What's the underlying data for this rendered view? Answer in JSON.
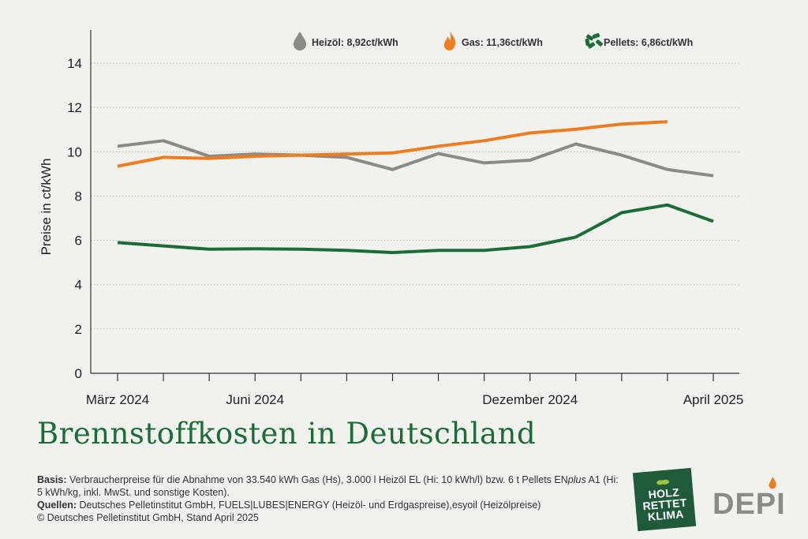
{
  "chart_data": {
    "type": "line",
    "title": "Brennstoffkosten in Deutschland",
    "ylabel": "Preise in ct/kWh",
    "ylim": [
      0,
      15.5
    ],
    "yticks": [
      0,
      2,
      4,
      6,
      8,
      10,
      12,
      14
    ],
    "grid": true,
    "legend_position": "top-right",
    "x": [
      "2024-03",
      "2024-04",
      "2024-05",
      "2024-06",
      "2024-07",
      "2024-08",
      "2024-09",
      "2024-10",
      "2024-11",
      "2024-12",
      "2025-01",
      "2025-02",
      "2025-03",
      "2025-04"
    ],
    "xtick_labels": [
      {
        "index": 0,
        "label": "März 2024"
      },
      {
        "index": 3,
        "label": "Juni 2024"
      },
      {
        "index": 9,
        "label": "Dezember 2024"
      },
      {
        "index": 13,
        "label": "April 2025"
      }
    ],
    "series": [
      {
        "name": "Heizöl",
        "legend": "Heizöl: 8,92ct/kWh",
        "color": "#8c8a84",
        "icon": "oil-drop-icon",
        "values": [
          10.25,
          10.5,
          9.8,
          9.9,
          9.85,
          9.75,
          9.2,
          9.92,
          9.5,
          9.62,
          10.35,
          9.85,
          9.2,
          8.92
        ]
      },
      {
        "name": "Gas",
        "legend": "Gas: 11,36ct/kWh",
        "color": "#ee7d22",
        "icon": "flame-icon",
        "values": [
          9.35,
          9.75,
          9.7,
          9.8,
          9.85,
          9.9,
          9.95,
          10.25,
          10.5,
          10.85,
          11.02,
          11.25,
          11.36,
          null
        ]
      },
      {
        "name": "Pellets",
        "legend": "Pellets: 6,86ct/kWh",
        "color": "#1c6b3a",
        "icon": "pellets-icon",
        "values": [
          5.9,
          5.75,
          5.6,
          5.62,
          5.6,
          5.55,
          5.45,
          5.55,
          5.55,
          5.72,
          6.15,
          7.25,
          7.6,
          6.86
        ]
      }
    ]
  },
  "notes": {
    "basis_label": "Basis:",
    "basis_text_1": " Verbraucherpreise für die Abnahme von 33.540 kWh Gas (Hs), 3.000 l Heizöl EL (Hi: 10 kWh/l) bzw. 6 t Pellets EN",
    "basis_plus": "plus",
    "basis_text_2": " A1 (Hi: 5 kWh/kg, inkl. MwSt. und sonstige Kosten).",
    "sources_label": "Quellen:",
    "sources_text": " Deutsches Pelletinstitut GmbH, FUELS|LUBES|ENERGY (Heizöl- und Erdgaspreise),esyoil (Heizölpreise)",
    "copyright": "© Deutsches Pelletinstitut GmbH, Stand April 2025"
  },
  "logos": {
    "holz_line1": "HOLZ",
    "holz_line2": "RETTET",
    "holz_line3": "KLIMA",
    "depi": "DEPI"
  }
}
